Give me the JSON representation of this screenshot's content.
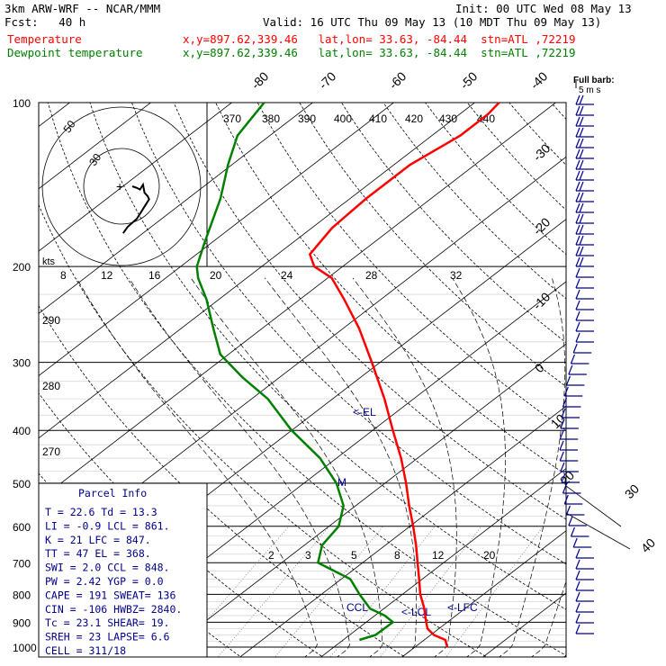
{
  "header": {
    "model": "3km ARW-WRF -- NCAR/MMM",
    "init": "Init: 00 UTC Wed 08 May 13",
    "fcst": "Fcst:   40 h",
    "valid": "Valid: 16 UTC Thu 09 May 13 (10 MDT Thu 09 May 13)",
    "temp_label": "Temperature",
    "temp_loc": "x,y=897.62,339.46   lat,lon= 33.63, -84.44  stn=ATL ,72219",
    "dew_label": "Dewpoint temperature",
    "dew_loc": "x,y=897.62,339.46   lat,lon= 33.63, -84.44  stn=ATL ,72219"
  },
  "colors": {
    "temperature": "#ff0000",
    "dewpoint": "#008000",
    "text_blue": "#00008b"
  },
  "chart_data": {
    "type": "line",
    "ylabel": "Pressure (hPa)",
    "y_scale": "log",
    "ylim": [
      1000,
      100
    ],
    "pressure_ticks": [
      "100",
      "200",
      "300",
      "400",
      "500",
      "600",
      "700",
      "800",
      "900",
      "1000"
    ],
    "isotherm_labels": [
      "-80",
      "-70",
      "-60",
      "-50",
      "-40",
      "-30",
      "-20",
      "-10",
      "0",
      "10",
      "20",
      "30",
      "40"
    ],
    "theta_labels": [
      "370",
      "380",
      "390",
      "400",
      "410",
      "420",
      "430",
      "440"
    ],
    "theta_side_labels": [
      "290",
      "280",
      "270"
    ],
    "hodograph_speed_labels": [
      "8",
      "12",
      "16",
      "20",
      "24",
      "28",
      "32"
    ],
    "hodograph_rings": [
      "50",
      "30"
    ],
    "hodograph_units": "kts",
    "mixing_ratio_labels": [
      "2",
      "3",
      "5",
      "8",
      "12",
      "20"
    ],
    "barb_key": "Full barb:\n5 m s",
    "levels": {
      "el": "<-EL",
      "lfc": "<-LFC",
      "lcl": "<-LCL",
      "ccl": "CCL",
      "m": "M"
    },
    "series": [
      {
        "name": "Temperature",
        "color": "#ff0000",
        "points": [
          [
            1000,
            24
          ],
          [
            970,
            22.6
          ],
          [
            950,
            20.4
          ],
          [
            925,
            18.6
          ],
          [
            900,
            17.4
          ],
          [
            875,
            16.2
          ],
          [
            850,
            15.0
          ],
          [
            800,
            12.2
          ],
          [
            750,
            9.6
          ],
          [
            700,
            6.8
          ],
          [
            650,
            3.8
          ],
          [
            600,
            0.4
          ],
          [
            550,
            -3.4
          ],
          [
            500,
            -7.4
          ],
          [
            450,
            -12.0
          ],
          [
            400,
            -17.5
          ],
          [
            350,
            -23.6
          ],
          [
            300,
            -31.0
          ],
          [
            260,
            -38.0
          ],
          [
            230,
            -44.5
          ],
          [
            210,
            -49.5
          ],
          [
            200,
            -53.5
          ],
          [
            190,
            -56.0
          ],
          [
            170,
            -57.5
          ],
          [
            150,
            -58.0
          ],
          [
            130,
            -58.0
          ],
          [
            115,
            -56.5
          ],
          [
            105,
            -56.5
          ],
          [
            100,
            -57.0
          ]
        ]
      },
      {
        "name": "Dewpoint temperature",
        "color": "#008000",
        "points": [
          [
            970,
            12.0
          ],
          [
            950,
            13.2
          ],
          [
            900,
            13.3
          ],
          [
            875,
            11.2
          ],
          [
            850,
            8.3
          ],
          [
            800,
            4.7
          ],
          [
            750,
            1.1
          ],
          [
            700,
            -5.5
          ],
          [
            650,
            -7.8
          ],
          [
            600,
            -8.8
          ],
          [
            550,
            -11.5
          ],
          [
            500,
            -16.0
          ],
          [
            450,
            -22.0
          ],
          [
            400,
            -30.0
          ],
          [
            350,
            -38.0
          ],
          [
            320,
            -44.5
          ],
          [
            290,
            -51.0
          ],
          [
            260,
            -56.0
          ],
          [
            230,
            -61.5
          ],
          [
            210,
            -66.0
          ],
          [
            200,
            -68.0
          ],
          [
            180,
            -71.0
          ],
          [
            150,
            -76.0
          ],
          [
            130,
            -80.5
          ],
          [
            115,
            -84.0
          ],
          [
            100,
            -86.0
          ]
        ]
      }
    ],
    "hodograph_trace": [
      [
        0,
        0
      ],
      [
        3,
        1
      ],
      [
        5,
        2
      ],
      [
        7,
        -1
      ],
      [
        8,
        4
      ],
      [
        10,
        6
      ],
      [
        11,
        8
      ],
      [
        7,
        14
      ],
      [
        3,
        20
      ],
      [
        -3,
        25
      ],
      [
        -6,
        29
      ]
    ]
  },
  "parcel_info": {
    "title": "Parcel Info",
    "rows": [
      "T  =    22.6  Td =  13.3",
      "LI =    -0.9  LCL =  861.",
      "K  =      21  LFC =  847.",
      "TT =      47  EL  =  368.",
      "SWI =    2.0  CCL =  848.",
      "PW  =   2.42  YGP =   0.0",
      "CAPE =   191  SWEAT=  136",
      "CIN  =  -106  HWBZ= 2840.",
      "Tc   =  23.1  SHEAR=  19.",
      "SREH =    23  LAPSE=  6.6",
      "CELL = 311/18"
    ]
  }
}
